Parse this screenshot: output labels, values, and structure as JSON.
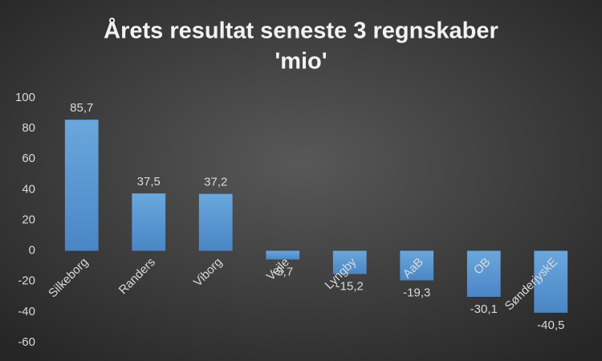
{
  "chart_data": {
    "type": "bar",
    "title": "Årets resultat seneste 3 regnskaber",
    "subtitle": "'mio'",
    "categories": [
      "Silkeborg",
      "Randers",
      "Viborg",
      "Vejle",
      "Lyngby",
      "AaB",
      "OB",
      "SønderjyskE"
    ],
    "values": [
      85.7,
      37.5,
      37.2,
      -5.7,
      -15.2,
      -19.3,
      -30.1,
      -40.5
    ],
    "value_labels": [
      "85,7",
      "37,5",
      "37,2",
      "-5,7",
      "-15,2",
      "-19,3",
      "-30,1",
      "-40,5"
    ],
    "color": "#5b9bd5",
    "ylim": [
      -60,
      100
    ],
    "yticks": [
      -60,
      -40,
      -20,
      0,
      20,
      40,
      60,
      80,
      100
    ],
    "grid": false
  }
}
